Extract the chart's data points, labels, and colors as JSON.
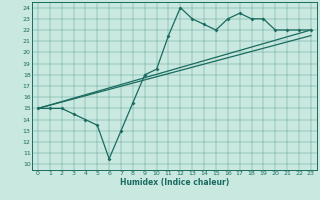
{
  "xlabel": "Humidex (Indice chaleur)",
  "bg_color": "#c8e8e0",
  "line_color": "#1a6b60",
  "xlim": [
    -0.5,
    23.5
  ],
  "ylim": [
    9.5,
    24.5
  ],
  "xticks": [
    0,
    1,
    2,
    3,
    4,
    5,
    6,
    7,
    8,
    9,
    10,
    11,
    12,
    13,
    14,
    15,
    16,
    17,
    18,
    19,
    20,
    21,
    22,
    23
  ],
  "yticks": [
    10,
    11,
    12,
    13,
    14,
    15,
    16,
    17,
    18,
    19,
    20,
    21,
    22,
    23,
    24
  ],
  "line1_x": [
    0,
    1,
    2,
    3,
    4,
    5,
    6,
    7,
    8,
    9,
    10,
    11,
    12,
    13,
    14,
    15,
    16,
    17,
    18,
    19,
    20,
    21,
    22,
    23
  ],
  "line1_y": [
    15,
    15,
    15,
    14.5,
    14,
    13.5,
    10.5,
    13,
    15.5,
    18,
    18.5,
    21.5,
    24,
    23,
    22.5,
    22,
    23,
    23.5,
    23,
    23,
    22,
    22,
    22,
    22
  ],
  "line2_x": [
    0,
    23
  ],
  "line2_y": [
    15,
    22
  ],
  "line3_x": [
    0,
    23
  ],
  "line3_y": [
    15,
    21.5
  ]
}
